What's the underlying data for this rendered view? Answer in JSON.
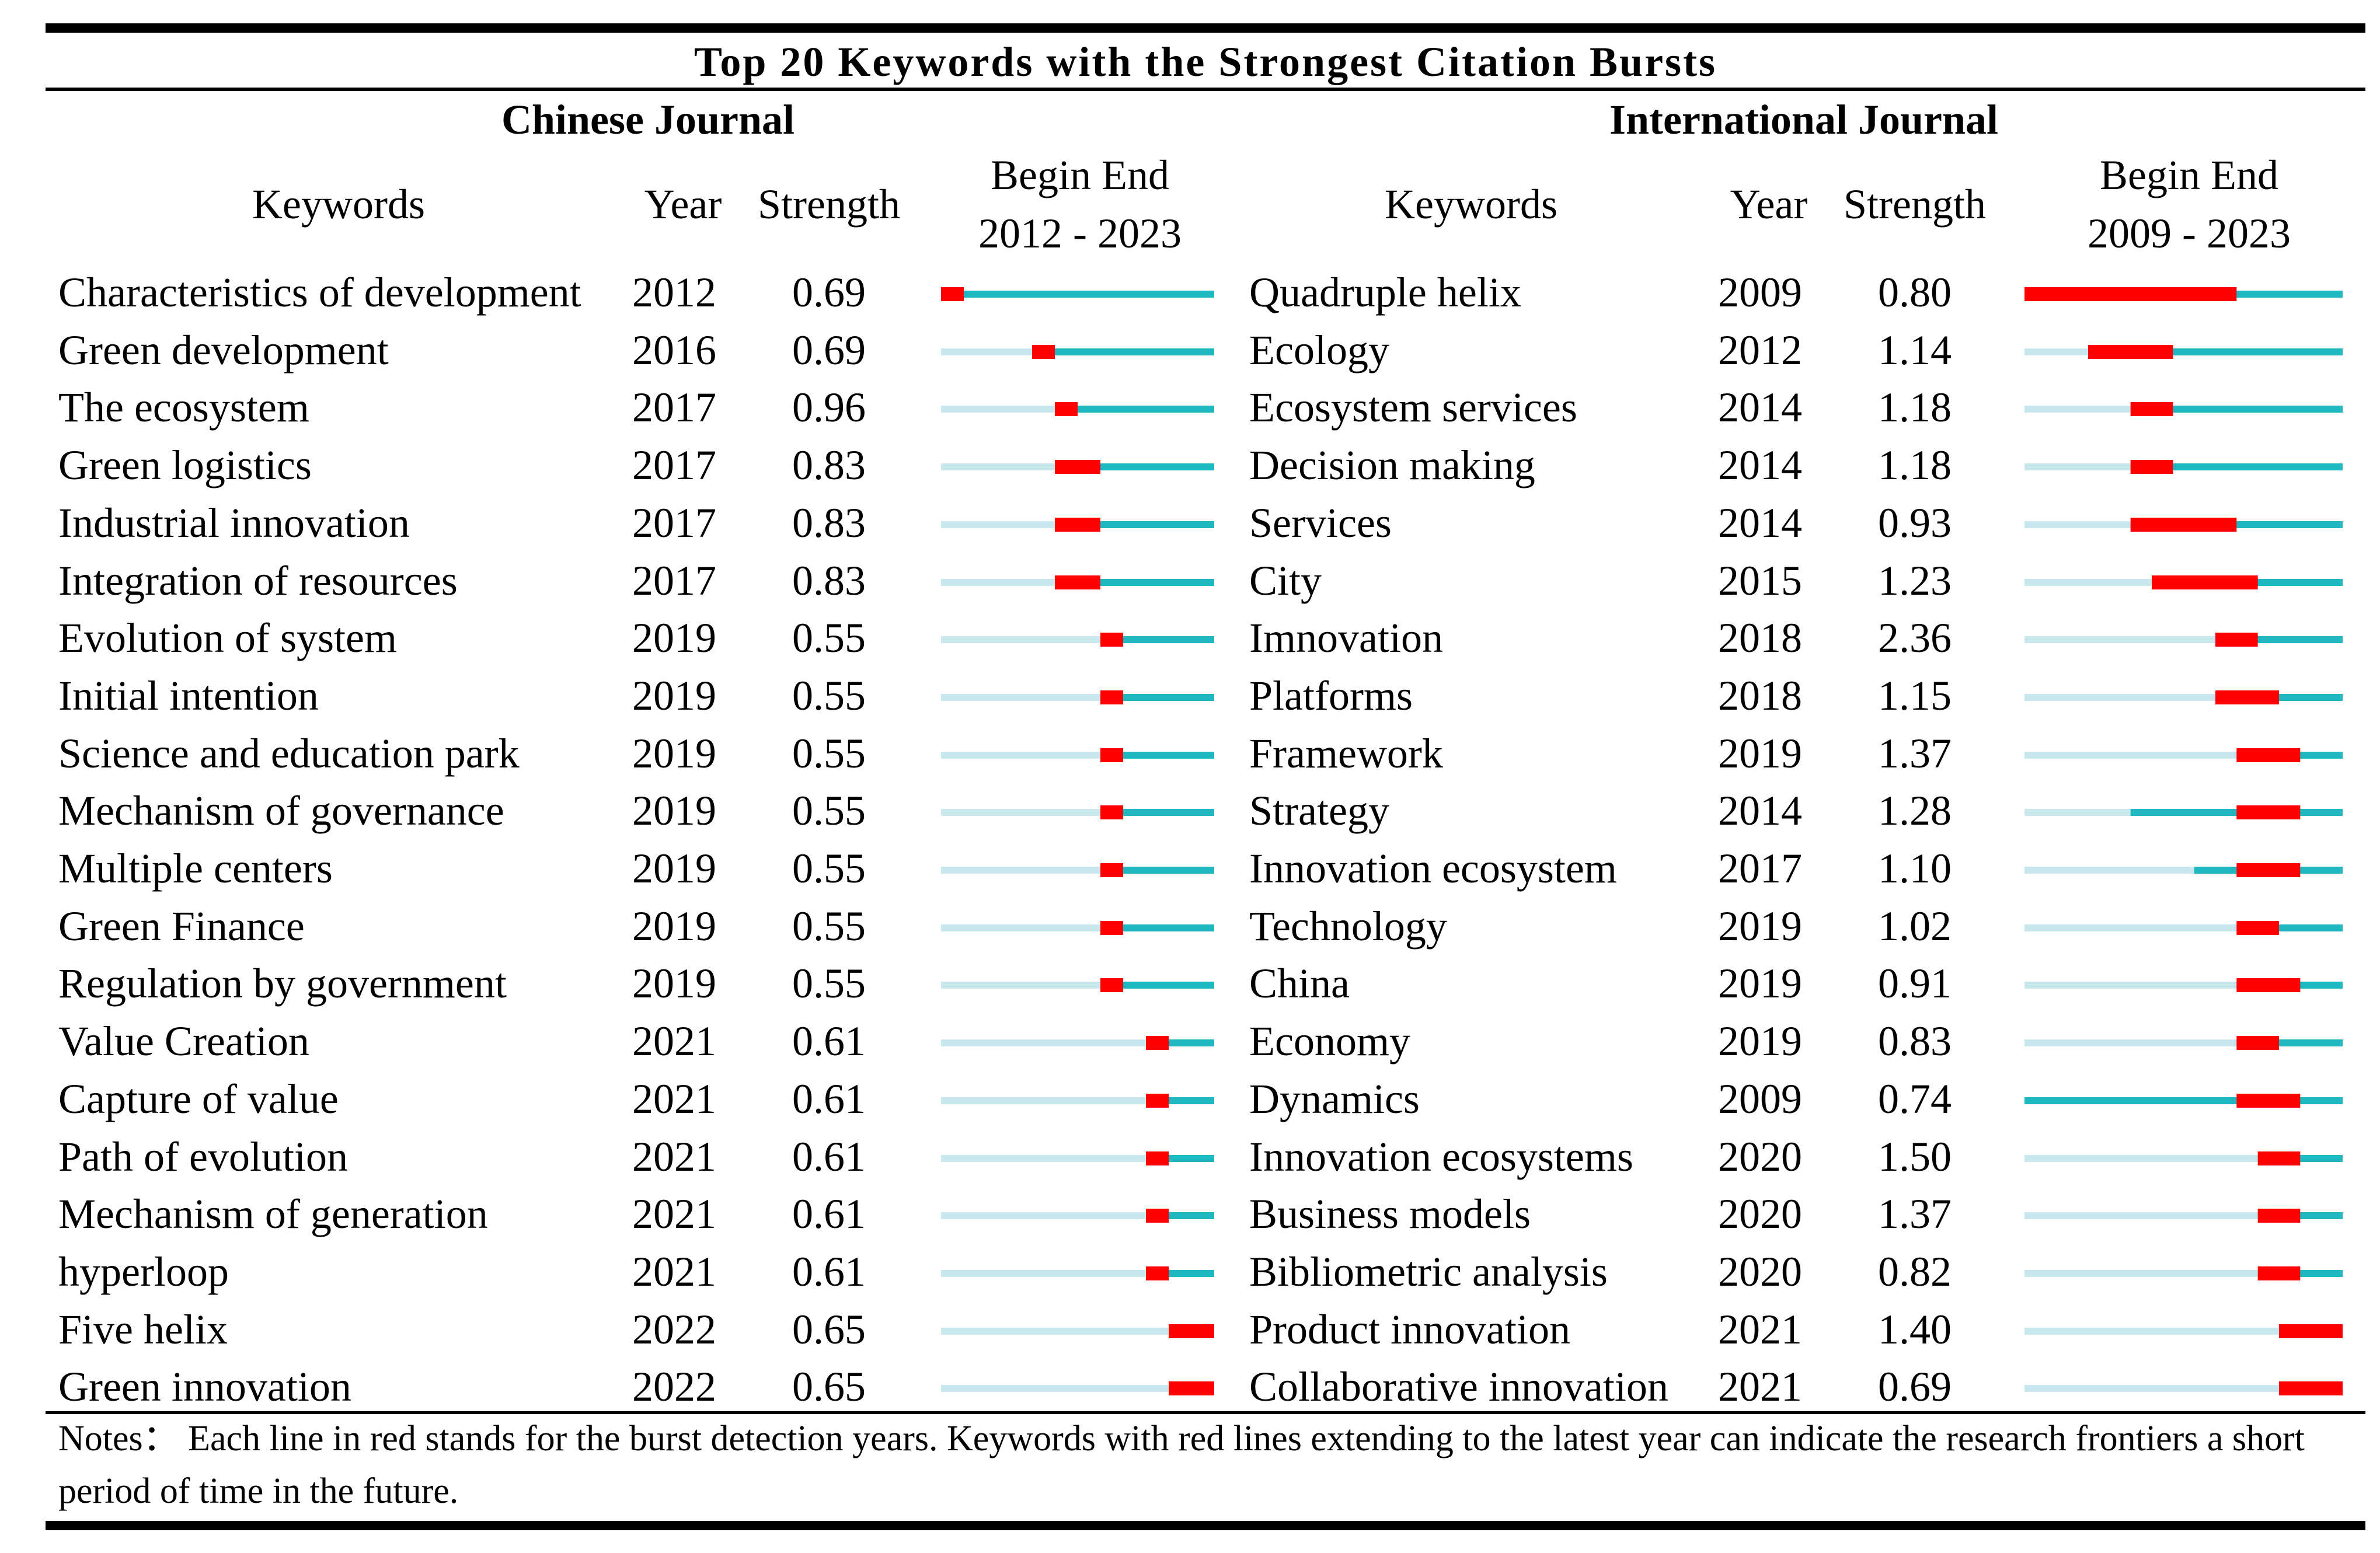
{
  "title": "Top 20 Keywords with the Strongest Citation Bursts",
  "colors": {
    "burst": "#ff0000",
    "active": "#1fb8c0",
    "inactive": "#c8e8ed"
  },
  "chart_data": [
    {
      "type": "table",
      "section": "Chinese Journal",
      "headers": {
        "keywords": "Keywords",
        "year": "Year",
        "strength": "Strength",
        "begin_end": "Begin End",
        "range_label": "2012 - 2023"
      },
      "range": [
        2012,
        2023
      ],
      "rows": [
        {
          "keyword": "Characteristics of development",
          "year": "2012",
          "strength": "0.69",
          "active_from": 2012,
          "burst_begin": 2012,
          "burst_end": 2012
        },
        {
          "keyword": "Green development",
          "year": "2016",
          "strength": "0.69",
          "active_from": 2016,
          "burst_begin": 2016,
          "burst_end": 2016
        },
        {
          "keyword": "The ecosystem",
          "year": "2017",
          "strength": "0.96",
          "active_from": 2017,
          "burst_begin": 2017,
          "burst_end": 2017
        },
        {
          "keyword": "Green logistics",
          "year": "2017",
          "strength": "0.83",
          "active_from": 2017,
          "burst_begin": 2017,
          "burst_end": 2018
        },
        {
          "keyword": "Industrial innovation",
          "year": "2017",
          "strength": "0.83",
          "active_from": 2017,
          "burst_begin": 2017,
          "burst_end": 2018
        },
        {
          "keyword": "Integration of resources",
          "year": "2017",
          "strength": "0.83",
          "active_from": 2017,
          "burst_begin": 2017,
          "burst_end": 2018
        },
        {
          "keyword": "Evolution of system",
          "year": "2019",
          "strength": "0.55",
          "active_from": 2019,
          "burst_begin": 2019,
          "burst_end": 2019
        },
        {
          "keyword": "Initial intention",
          "year": "2019",
          "strength": "0.55",
          "active_from": 2019,
          "burst_begin": 2019,
          "burst_end": 2019
        },
        {
          "keyword": "Science and education park",
          "year": "2019",
          "strength": "0.55",
          "active_from": 2019,
          "burst_begin": 2019,
          "burst_end": 2019
        },
        {
          "keyword": "Mechanism of governance",
          "year": "2019",
          "strength": "0.55",
          "active_from": 2019,
          "burst_begin": 2019,
          "burst_end": 2019
        },
        {
          "keyword": "Multiple centers",
          "year": "2019",
          "strength": "0.55",
          "active_from": 2019,
          "burst_begin": 2019,
          "burst_end": 2019
        },
        {
          "keyword": "Green Finance",
          "year": "2019",
          "strength": "0.55",
          "active_from": 2019,
          "burst_begin": 2019,
          "burst_end": 2019
        },
        {
          "keyword": "Regulation by government",
          "year": "2019",
          "strength": "0.55",
          "active_from": 2019,
          "burst_begin": 2019,
          "burst_end": 2019
        },
        {
          "keyword": "Value Creation",
          "year": "2021",
          "strength": "0.61",
          "active_from": 2021,
          "burst_begin": 2021,
          "burst_end": 2021
        },
        {
          "keyword": "Capture of value",
          "year": "2021",
          "strength": "0.61",
          "active_from": 2021,
          "burst_begin": 2021,
          "burst_end": 2021
        },
        {
          "keyword": "Path of evolution",
          "year": "2021",
          "strength": "0.61",
          "active_from": 2021,
          "burst_begin": 2021,
          "burst_end": 2021
        },
        {
          "keyword": "Mechanism of generation",
          "year": "2021",
          "strength": "0.61",
          "active_from": 2021,
          "burst_begin": 2021,
          "burst_end": 2021
        },
        {
          "keyword": "hyperloop",
          "year": "2021",
          "strength": "0.61",
          "active_from": 2021,
          "burst_begin": 2021,
          "burst_end": 2021
        },
        {
          "keyword": "Five helix",
          "year": "2022",
          "strength": "0.65",
          "active_from": 2022,
          "burst_begin": 2022,
          "burst_end": 2023
        },
        {
          "keyword": "Green innovation",
          "year": "2022",
          "strength": "0.65",
          "active_from": 2022,
          "burst_begin": 2022,
          "burst_end": 2023
        }
      ]
    },
    {
      "type": "table",
      "section": "International Journal",
      "headers": {
        "keywords": "Keywords",
        "year": "Year",
        "strength": "Strength",
        "begin_end": "Begin End",
        "range_label": "2009 - 2023"
      },
      "range": [
        2009,
        2023
      ],
      "rows": [
        {
          "keyword": "Quadruple helix",
          "year": "2009",
          "strength": "0.80",
          "active_from": 2009,
          "burst_begin": 2009,
          "burst_end": 2018
        },
        {
          "keyword": "Ecology",
          "year": "2012",
          "strength": "1.14",
          "active_from": 2012,
          "burst_begin": 2012,
          "burst_end": 2015
        },
        {
          "keyword": "Ecosystem services",
          "year": "2014",
          "strength": "1.18",
          "active_from": 2014,
          "burst_begin": 2014,
          "burst_end": 2015
        },
        {
          "keyword": "Decision making",
          "year": "2014",
          "strength": "1.18",
          "active_from": 2014,
          "burst_begin": 2014,
          "burst_end": 2015
        },
        {
          "keyword": "Services",
          "year": "2014",
          "strength": "0.93",
          "active_from": 2014,
          "burst_begin": 2014,
          "burst_end": 2018
        },
        {
          "keyword": "City",
          "year": "2015",
          "strength": "1.23",
          "active_from": 2015,
          "burst_begin": 2015,
          "burst_end": 2019
        },
        {
          "keyword": "Imnovation",
          "year": "2018",
          "strength": "2.36",
          "active_from": 2018,
          "burst_begin": 2018,
          "burst_end": 2019
        },
        {
          "keyword": "Platforms",
          "year": "2018",
          "strength": "1.15",
          "active_from": 2018,
          "burst_begin": 2018,
          "burst_end": 2020
        },
        {
          "keyword": "Framework",
          "year": "2019",
          "strength": "1.37",
          "active_from": 2019,
          "burst_begin": 2019,
          "burst_end": 2021
        },
        {
          "keyword": "Strategy",
          "year": "2014",
          "strength": "1.28",
          "active_from": 2014,
          "burst_begin": 2019,
          "burst_end": 2021
        },
        {
          "keyword": "Innovation  ecosystem",
          "year": "2017",
          "strength": "1.10",
          "active_from": 2017,
          "burst_begin": 2019,
          "burst_end": 2021
        },
        {
          "keyword": "Technology",
          "year": "2019",
          "strength": "1.02",
          "active_from": 2019,
          "burst_begin": 2019,
          "burst_end": 2020
        },
        {
          "keyword": "China",
          "year": "2019",
          "strength": "0.91",
          "active_from": 2019,
          "burst_begin": 2019,
          "burst_end": 2021
        },
        {
          "keyword": "Economy",
          "year": "2019",
          "strength": "0.83",
          "active_from": 2019,
          "burst_begin": 2019,
          "burst_end": 2020
        },
        {
          "keyword": "Dynamics",
          "year": "2009",
          "strength": "0.74",
          "active_from": 2009,
          "burst_begin": 2019,
          "burst_end": 2021
        },
        {
          "keyword": "Innovation ecosystems",
          "year": "2020",
          "strength": "1.50",
          "active_from": 2020,
          "burst_begin": 2020,
          "burst_end": 2021
        },
        {
          "keyword": "Business  models",
          "year": "2020",
          "strength": "1.37",
          "active_from": 2020,
          "burst_begin": 2020,
          "burst_end": 2021
        },
        {
          "keyword": "Bibliometric  analysis",
          "year": "2020",
          "strength": "0.82",
          "active_from": 2020,
          "burst_begin": 2020,
          "burst_end": 2021
        },
        {
          "keyword": "Product  innovation",
          "year": "2021",
          "strength": "1.40",
          "active_from": 2021,
          "burst_begin": 2021,
          "burst_end": 2023
        },
        {
          "keyword": "Collaborative innovation",
          "year": "2021",
          "strength": "0.69",
          "active_from": 2021,
          "burst_begin": 2021,
          "burst_end": 2023
        }
      ]
    }
  ],
  "notes": "Notes： Each  line in red stands for the burst detection years. Keywords with red lines extending to the latest year can indicate the research frontiers a short period of time in the future."
}
